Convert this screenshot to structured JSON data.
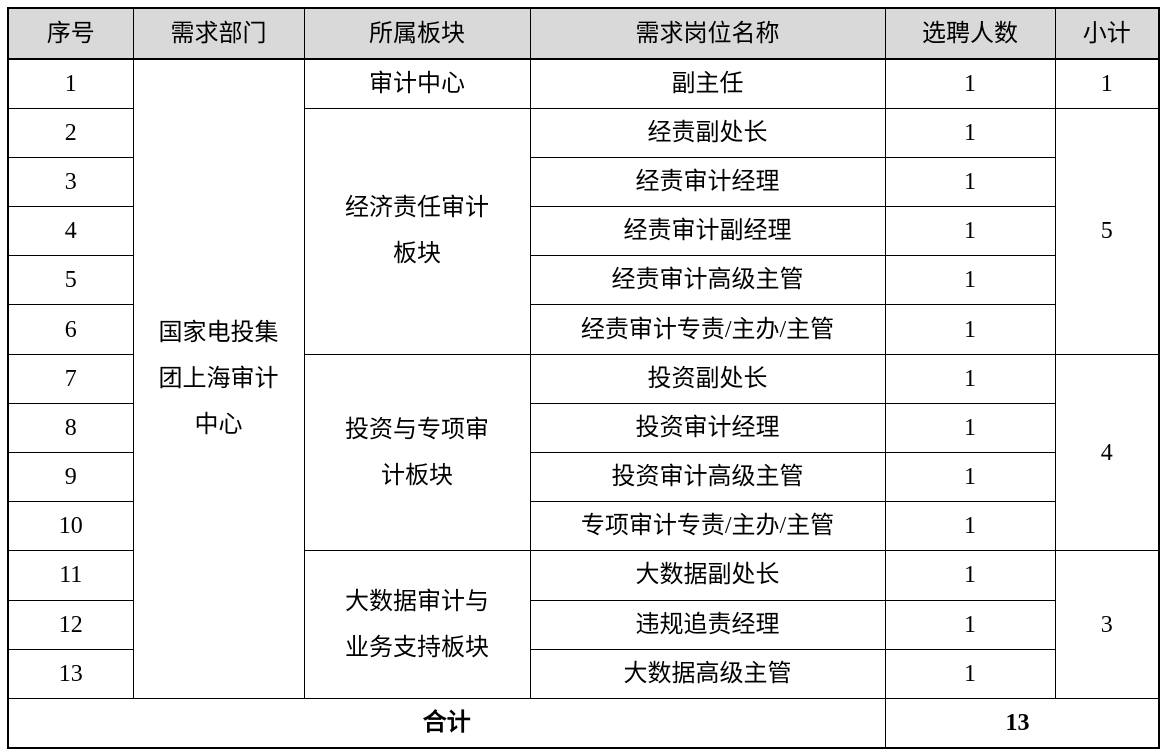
{
  "headers": [
    "序号",
    "需求部门",
    "所属板块",
    "需求岗位名称",
    "选聘人数",
    "小计"
  ],
  "department": [
    "国家电投集",
    "团上海审计",
    "中心"
  ],
  "sections": [
    {
      "name": [
        "审计中心"
      ],
      "subtotal": "1"
    },
    {
      "name": [
        "经济责任审计",
        "板块"
      ],
      "subtotal": "5"
    },
    {
      "name": [
        "投资与专项审",
        "计板块"
      ],
      "subtotal": "4"
    },
    {
      "name": [
        "大数据审计与",
        "业务支持板块"
      ],
      "subtotal": "3"
    }
  ],
  "rows": [
    {
      "no": "1",
      "position": "副主任",
      "count": "1"
    },
    {
      "no": "2",
      "position": "经责副处长",
      "count": "1"
    },
    {
      "no": "3",
      "position": "经责审计经理",
      "count": "1"
    },
    {
      "no": "4",
      "position": "经责审计副经理",
      "count": "1"
    },
    {
      "no": "5",
      "position": "经责审计高级主管",
      "count": "1"
    },
    {
      "no": "6",
      "position": "经责审计专责/主办/主管",
      "count": "1"
    },
    {
      "no": "7",
      "position": "投资副处长",
      "count": "1"
    },
    {
      "no": "8",
      "position": "投资审计经理",
      "count": "1"
    },
    {
      "no": "9",
      "position": "投资审计高级主管",
      "count": "1"
    },
    {
      "no": "10",
      "position": "专项审计专责/主办/主管",
      "count": "1"
    },
    {
      "no": "11",
      "position": "大数据副处长",
      "count": "1"
    },
    {
      "no": "12",
      "position": "违规追责经理",
      "count": "1"
    },
    {
      "no": "13",
      "position": "大数据高级主管",
      "count": "1"
    }
  ],
  "total": {
    "label": "合计",
    "value": "13"
  },
  "colors": {
    "header_bg": "#d9d9d9",
    "border": "#000000"
  }
}
